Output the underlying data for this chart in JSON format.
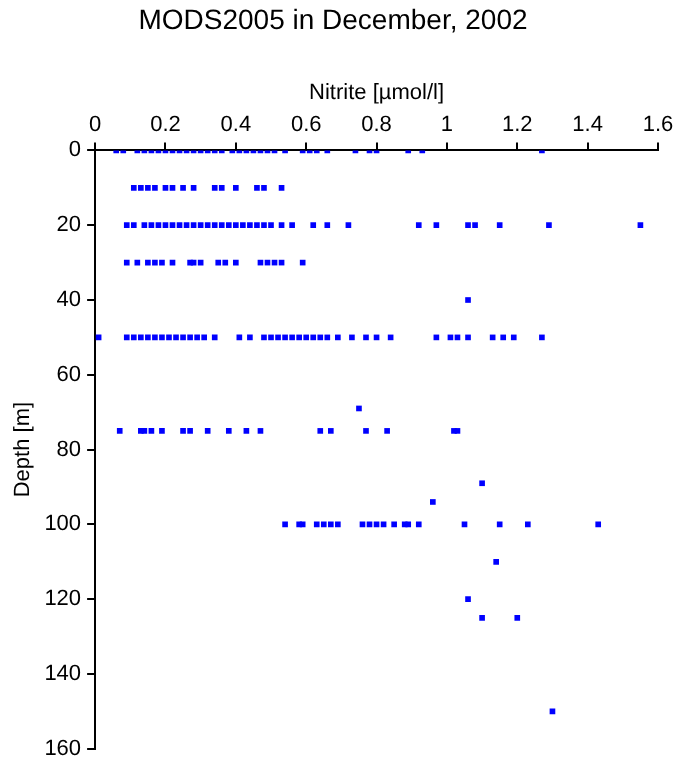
{
  "chart_data": {
    "type": "scatter",
    "title": "MODS2005 in December, 2002",
    "xlabel": "Nitrite [µmol/l]",
    "ylabel": "Depth [m]",
    "xlim": [
      0,
      1.6
    ],
    "xticks": [
      0,
      0.2,
      0.4,
      0.6,
      0.8,
      1,
      1.2,
      1.4,
      1.6
    ],
    "ylim": [
      160,
      0
    ],
    "yticks": [
      0,
      20,
      40,
      60,
      80,
      100,
      120,
      140,
      160
    ],
    "grid": false,
    "legend": false,
    "marker": "square",
    "series": [
      {
        "color": "#0000ff",
        "x": [
          0.06,
          0.08,
          0.12,
          0.14,
          0.16,
          0.18,
          0.2,
          0.22,
          0.24,
          0.26,
          0.28,
          0.3,
          0.32,
          0.34,
          0.36,
          0.39,
          0.41,
          0.43,
          0.45,
          0.47,
          0.49,
          0.51,
          0.54,
          0.59,
          0.61,
          0.63,
          0.66,
          0.74,
          0.78,
          0.8,
          0.89,
          0.93,
          1.27,
          0.11,
          0.13,
          0.15,
          0.17,
          0.2,
          0.22,
          0.25,
          0.28,
          0.34,
          0.36,
          0.4,
          0.46,
          0.48,
          0.53,
          0.09,
          0.11,
          0.14,
          0.16,
          0.18,
          0.2,
          0.22,
          0.24,
          0.26,
          0.28,
          0.3,
          0.32,
          0.34,
          0.36,
          0.38,
          0.4,
          0.42,
          0.44,
          0.46,
          0.48,
          0.5,
          0.53,
          0.56,
          0.62,
          0.66,
          0.72,
          0.92,
          0.97,
          1.06,
          1.08,
          1.15,
          1.29,
          1.55,
          0.09,
          0.12,
          0.15,
          0.17,
          0.19,
          0.22,
          0.27,
          0.28,
          0.3,
          0.35,
          0.37,
          0.4,
          0.47,
          0.49,
          0.51,
          0.53,
          0.59,
          1.06,
          0.01,
          0.09,
          0.11,
          0.13,
          0.15,
          0.17,
          0.19,
          0.21,
          0.23,
          0.25,
          0.27,
          0.29,
          0.31,
          0.34,
          0.41,
          0.44,
          0.48,
          0.5,
          0.52,
          0.54,
          0.56,
          0.58,
          0.6,
          0.62,
          0.64,
          0.66,
          0.69,
          0.73,
          0.77,
          0.8,
          0.84,
          0.97,
          1.01,
          1.03,
          1.06,
          1.13,
          1.16,
          1.19,
          1.27,
          0.75,
          0.07,
          0.13,
          0.14,
          0.16,
          0.19,
          0.25,
          0.27,
          0.32,
          0.38,
          0.43,
          0.47,
          0.64,
          0.67,
          0.77,
          0.83,
          1.02,
          1.03,
          1.1,
          0.96,
          0.54,
          0.58,
          0.59,
          0.63,
          0.65,
          0.67,
          0.69,
          0.76,
          0.78,
          0.8,
          0.82,
          0.85,
          0.88,
          0.89,
          0.92,
          1.05,
          1.15,
          1.23,
          1.43,
          1.14,
          1.06,
          1.1,
          1.2,
          1.3
        ],
        "values": [
          0,
          0,
          0,
          0,
          0,
          0,
          0,
          0,
          0,
          0,
          0,
          0,
          0,
          0,
          0,
          0,
          0,
          0,
          0,
          0,
          0,
          0,
          0,
          0,
          0,
          0,
          0,
          0,
          0,
          0,
          0,
          0,
          0,
          10,
          10,
          10,
          10,
          10,
          10,
          10,
          10,
          10,
          10,
          10,
          10,
          10,
          10,
          20,
          20,
          20,
          20,
          20,
          20,
          20,
          20,
          20,
          20,
          20,
          20,
          20,
          20,
          20,
          20,
          20,
          20,
          20,
          20,
          20,
          20,
          20,
          20,
          20,
          20,
          20,
          20,
          20,
          20,
          20,
          20,
          20,
          30,
          30,
          30,
          30,
          30,
          30,
          30,
          30,
          30,
          30,
          30,
          30,
          30,
          30,
          30,
          30,
          30,
          40,
          50,
          50,
          50,
          50,
          50,
          50,
          50,
          50,
          50,
          50,
          50,
          50,
          50,
          50,
          50,
          50,
          50,
          50,
          50,
          50,
          50,
          50,
          50,
          50,
          50,
          50,
          50,
          50,
          50,
          50,
          50,
          50,
          50,
          50,
          50,
          50,
          50,
          50,
          50,
          69,
          75,
          75,
          75,
          75,
          75,
          75,
          75,
          75,
          75,
          75,
          75,
          75,
          75,
          75,
          75,
          75,
          75,
          89,
          94,
          100,
          100,
          100,
          100,
          100,
          100,
          100,
          100,
          100,
          100,
          100,
          100,
          100,
          100,
          100,
          100,
          100,
          100,
          100,
          110,
          120,
          125,
          125,
          150
        ]
      }
    ]
  }
}
